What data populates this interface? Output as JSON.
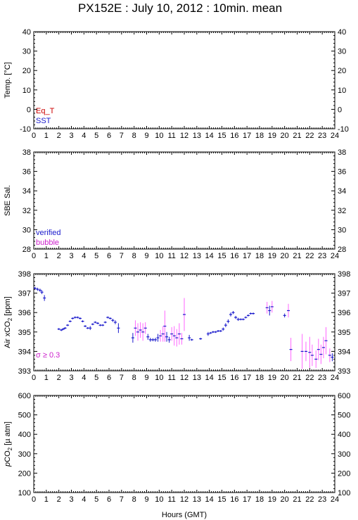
{
  "title": "PX152E : July 10, 2012 : 10min. mean",
  "colors": {
    "frame": "#000000",
    "eq_t": "#cc0000",
    "sst": "#1a1acc",
    "verified": "#1a1acc",
    "bubble": "#cc22cc",
    "air_point": "#1a1acc",
    "air_error": "#ff66ff",
    "sigma_label": "#cc22cc"
  },
  "chart_data": [
    {
      "type": "scatter",
      "id": "temp",
      "ylabel": "Temp. [°C]",
      "xlim": [
        0,
        24
      ],
      "ylim": [
        -10,
        40
      ],
      "yticks": [
        -10,
        0,
        10,
        20,
        30,
        40
      ],
      "legend": [
        {
          "name": "Eq_T",
          "color_key": "eq_t"
        },
        {
          "name": "SST",
          "color_key": "sst"
        }
      ],
      "legend_placement": "bottom-left",
      "series": []
    },
    {
      "type": "scatter",
      "id": "sal",
      "ylabel": "SBE Sal.",
      "xlim": [
        0,
        24
      ],
      "ylim": [
        28,
        38
      ],
      "yticks": [
        28,
        30,
        32,
        34,
        36,
        38
      ],
      "legend": [
        {
          "name": "verified",
          "color_key": "verified"
        },
        {
          "name": "bubble",
          "color_key": "bubble"
        }
      ],
      "legend_placement": "bottom-left",
      "series": []
    },
    {
      "type": "scatter",
      "id": "air",
      "ylabel": "Air xCO2 [ppm]",
      "xlim": [
        0,
        24
      ],
      "ylim": [
        393,
        398
      ],
      "yticks": [
        393,
        394,
        395,
        396,
        397,
        398
      ],
      "annotation": "σ ≥ 0.3",
      "series": [
        {
          "points": [
            [
              0.1,
              397.25,
              0.08
            ],
            [
              0.3,
              397.2,
              0.08
            ],
            [
              0.5,
              397.15,
              0.08
            ],
            [
              0.65,
              397.05,
              0.1
            ],
            [
              0.85,
              396.75,
              0.15
            ],
            [
              2.0,
              395.15,
              0.05
            ],
            [
              2.2,
              395.1,
              0.05
            ],
            [
              2.35,
              395.15,
              0.05
            ],
            [
              2.5,
              395.2,
              0.05
            ],
            [
              2.7,
              395.35,
              0.05
            ],
            [
              2.9,
              395.55,
              0.05
            ],
            [
              3.1,
              395.7,
              0.05
            ],
            [
              3.3,
              395.75,
              0.05
            ],
            [
              3.5,
              395.75,
              0.05
            ],
            [
              3.7,
              395.7,
              0.05
            ],
            [
              3.9,
              395.55,
              0.05
            ],
            [
              4.1,
              395.3,
              0.05
            ],
            [
              4.3,
              395.2,
              0.05
            ],
            [
              4.5,
              395.2,
              0.1
            ],
            [
              4.7,
              395.4,
              0.05
            ],
            [
              4.9,
              395.5,
              0.05
            ],
            [
              5.1,
              395.45,
              0.05
            ],
            [
              5.3,
              395.35,
              0.05
            ],
            [
              5.5,
              395.35,
              0.05
            ],
            [
              5.7,
              395.5,
              0.05
            ],
            [
              5.9,
              395.75,
              0.05
            ],
            [
              6.1,
              395.7,
              0.05
            ],
            [
              6.3,
              395.6,
              0.08
            ],
            [
              6.5,
              395.5,
              0.1
            ],
            [
              6.75,
              395.2,
              0.25
            ],
            [
              7.9,
              394.7,
              0.25
            ],
            [
              8.1,
              395.2,
              0.4
            ],
            [
              8.3,
              395.0,
              0.45
            ],
            [
              8.5,
              395.1,
              0.4
            ],
            [
              8.7,
              395.0,
              0.45
            ],
            [
              8.9,
              395.2,
              0.3
            ],
            [
              9.1,
              394.75,
              0.15
            ],
            [
              9.3,
              394.6,
              0.1
            ],
            [
              9.5,
              394.6,
              0.08
            ],
            [
              9.7,
              394.6,
              0.1
            ],
            [
              9.9,
              394.7,
              0.2
            ],
            [
              10.1,
              394.8,
              0.3
            ],
            [
              10.3,
              394.9,
              0.4
            ],
            [
              10.45,
              395.3,
              0.8
            ],
            [
              10.6,
              394.75,
              0.25
            ],
            [
              10.8,
              394.6,
              0.15
            ],
            [
              11.0,
              394.9,
              0.35
            ],
            [
              11.2,
              394.8,
              0.5
            ],
            [
              11.4,
              394.7,
              0.45
            ],
            [
              11.6,
              394.9,
              0.55
            ],
            [
              11.8,
              394.65,
              0.3
            ],
            [
              12.0,
              395.9,
              0.85
            ],
            [
              12.4,
              394.7,
              0.15
            ],
            [
              12.6,
              394.6,
              0.05
            ],
            [
              13.3,
              394.65,
              0.05
            ],
            [
              13.9,
              394.9,
              0.1
            ],
            [
              14.1,
              394.95,
              0.05
            ],
            [
              14.3,
              395.0,
              0.05
            ],
            [
              14.5,
              395.0,
              0.05
            ],
            [
              14.7,
              395.05,
              0.05
            ],
            [
              14.9,
              395.05,
              0.05
            ],
            [
              15.1,
              395.15,
              0.08
            ],
            [
              15.3,
              395.35,
              0.1
            ],
            [
              15.5,
              395.55,
              0.1
            ],
            [
              15.7,
              395.9,
              0.1
            ],
            [
              15.9,
              396.0,
              0.08
            ],
            [
              16.1,
              395.75,
              0.08
            ],
            [
              16.3,
              395.65,
              0.08
            ],
            [
              16.5,
              395.65,
              0.05
            ],
            [
              16.7,
              395.65,
              0.05
            ],
            [
              16.9,
              395.75,
              0.05
            ],
            [
              17.1,
              395.85,
              0.05
            ],
            [
              17.3,
              395.95,
              0.05
            ],
            [
              17.5,
              395.95,
              0.05
            ],
            [
              18.6,
              396.25,
              0.3
            ],
            [
              18.8,
              396.1,
              0.25
            ],
            [
              19.0,
              396.3,
              0.3
            ],
            [
              20.0,
              395.85,
              0.1
            ],
            [
              20.3,
              396.1,
              0.35
            ],
            [
              20.5,
              394.1,
              0.6
            ],
            [
              21.4,
              394.0,
              0.9
            ],
            [
              21.7,
              394.0,
              0.5
            ],
            [
              22.0,
              393.95,
              0.8
            ],
            [
              22.2,
              393.8,
              0.55
            ],
            [
              22.5,
              393.6,
              0.45
            ],
            [
              22.7,
              394.1,
              0.55
            ],
            [
              22.9,
              393.85,
              0.5
            ],
            [
              23.1,
              394.2,
              0.55
            ],
            [
              23.3,
              394.55,
              0.7
            ],
            [
              23.6,
              393.8,
              0.35
            ],
            [
              23.8,
              393.7,
              0.2
            ]
          ]
        }
      ]
    },
    {
      "type": "scatter",
      "id": "pco2",
      "ylabel": "pCO2 [µ atm]",
      "xlabel": "Hours (GMT)",
      "xlim": [
        0,
        24
      ],
      "ylim": [
        100,
        600
      ],
      "yticks": [
        100,
        200,
        300,
        400,
        500,
        600
      ],
      "series": []
    }
  ],
  "xaxis": {
    "ticks": [
      0,
      1,
      2,
      3,
      4,
      5,
      6,
      7,
      8,
      9,
      10,
      11,
      12,
      13,
      14,
      15,
      16,
      17,
      18,
      19,
      20,
      21,
      22,
      23,
      24
    ],
    "label": "Hours (GMT)"
  }
}
